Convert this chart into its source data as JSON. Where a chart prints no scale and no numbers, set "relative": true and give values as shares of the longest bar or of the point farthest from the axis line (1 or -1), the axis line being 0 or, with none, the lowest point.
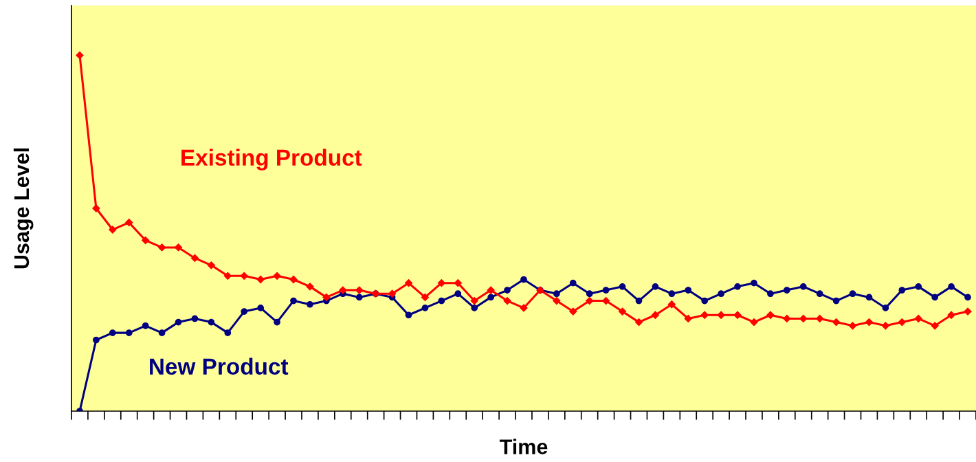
{
  "chart_data": {
    "type": "line",
    "relative": true,
    "xlabel": "Time",
    "ylabel": "Usage Level",
    "tick_labels": false,
    "grid": false,
    "legend": false,
    "line_style": "solid",
    "categories": [
      null,
      null,
      null,
      null,
      null,
      null,
      null,
      null,
      null,
      null,
      null,
      null,
      null,
      null,
      null,
      null,
      null,
      null,
      null,
      null,
      null,
      null,
      null,
      null,
      null,
      null,
      null,
      null,
      null,
      null,
      null,
      null,
      null,
      null,
      null,
      null,
      null,
      null,
      null,
      null,
      null,
      null,
      null,
      null,
      null,
      null,
      null,
      null,
      null,
      null,
      null,
      null,
      null,
      null,
      null
    ],
    "series": [
      {
        "name": "Existing Product",
        "color": "#ff0000",
        "marker": "diamond",
        "values": [
          1.0,
          0.57,
          0.51,
          0.53,
          0.48,
          0.46,
          0.46,
          0.43,
          0.41,
          0.38,
          0.38,
          0.37,
          0.38,
          0.37,
          0.35,
          0.32,
          0.34,
          0.34,
          0.33,
          0.33,
          0.36,
          0.32,
          0.36,
          0.36,
          0.31,
          0.34,
          0.31,
          0.29,
          0.34,
          0.31,
          0.28,
          0.31,
          0.31,
          0.28,
          0.25,
          0.27,
          0.3,
          0.26,
          0.27,
          0.27,
          0.27,
          0.25,
          0.27,
          0.26,
          0.26,
          0.26,
          0.25,
          0.24,
          0.25,
          0.24,
          0.25,
          0.26,
          0.24,
          0.27,
          0.28
        ]
      },
      {
        "name": "New Product",
        "color": "#000080",
        "marker": "circle",
        "values": [
          0.0,
          0.2,
          0.22,
          0.22,
          0.24,
          0.22,
          0.25,
          0.26,
          0.25,
          0.22,
          0.28,
          0.29,
          0.25,
          0.31,
          0.3,
          0.31,
          0.33,
          0.32,
          0.33,
          0.32,
          0.27,
          0.29,
          0.31,
          0.33,
          0.29,
          0.32,
          0.34,
          0.37,
          0.34,
          0.33,
          0.36,
          0.33,
          0.34,
          0.35,
          0.31,
          0.35,
          0.33,
          0.34,
          0.31,
          0.33,
          0.35,
          0.36,
          0.33,
          0.34,
          0.35,
          0.33,
          0.31,
          0.33,
          0.32,
          0.29,
          0.34,
          0.35,
          0.32,
          0.35,
          0.32
        ]
      }
    ]
  }
}
